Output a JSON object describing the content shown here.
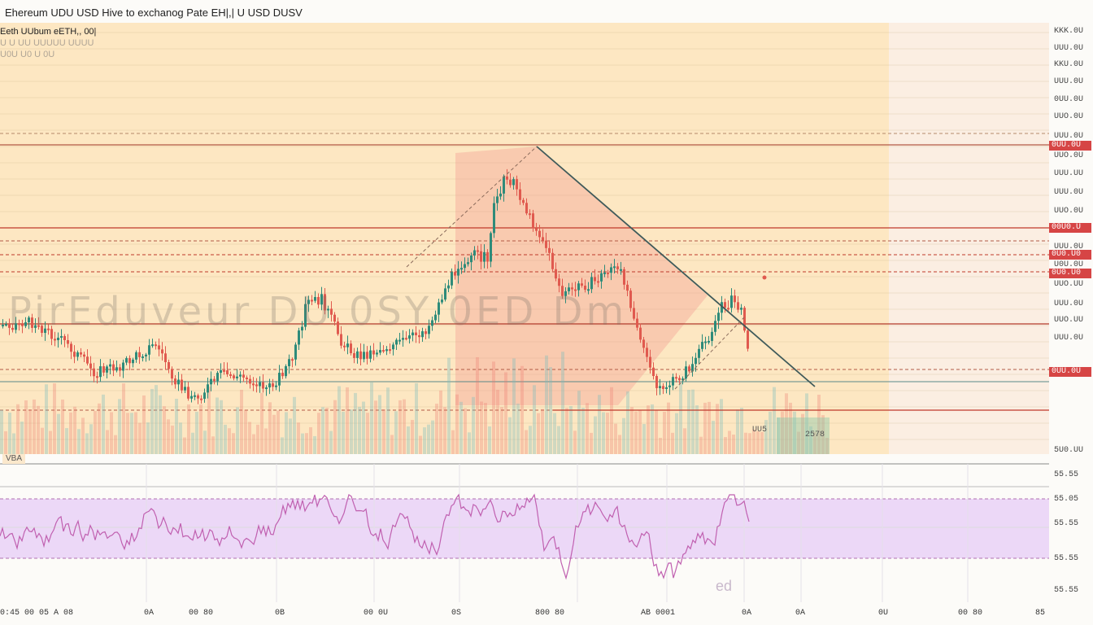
{
  "header": {
    "title": "Ehereum UDU USD Hive to exchanog Pate  EH|,| U USD DUSV",
    "symbol_line": "Eeth UUbum eETH,, 00|",
    "faded_line": "U U UU UUUUU UUUU",
    "faded_line2": "U0U U0 U 0U"
  },
  "watermark": "PirEduveur DU 0SY 0ED Dm",
  "price_axis": {
    "labels": [
      "KKK.0U",
      "UUU.0U",
      "KKU.0U",
      "UUU.0U",
      "0UU.0U",
      "UUO.0U",
      "UUU.0U",
      "UUO.0U",
      "UUU.UU",
      "UUU.0U",
      "UUO.0U",
      "UUU.0U",
      "UUU.0U",
      "U0U.0U",
      "UUO.UU",
      "UUU.0U",
      "UUO.UU",
      "UUU.0U"
    ],
    "badges": [
      {
        "text": "0UU.0U",
        "color": "#d64545"
      },
      {
        "text": "00U0.U",
        "color": "#d64545"
      },
      {
        "text": "0U0.U0",
        "color": "#d64545"
      },
      {
        "text": "0U0.U0",
        "color": "#d64545"
      },
      {
        "text": "0UU.0U",
        "color": "#d64545"
      }
    ],
    "bottom_label": "5U0.UU"
  },
  "indicator": {
    "tag": "VBA",
    "axis_labels": [
      "55.55",
      "55.05",
      "55.55",
      "55.55",
      "55.55"
    ],
    "watermark": "ed"
  },
  "overlay_labels": {
    "box_label": "2578",
    "small_label": "UU5"
  },
  "time_axis": {
    "labels": [
      "0:45 00 05 A 08",
      "0A",
      "00 80",
      "0B",
      "00 0U",
      "0S",
      "800 80",
      "AB 0001",
      "0A",
      "0A",
      "0U",
      "00 80",
      "85"
    ]
  },
  "colors": {
    "bull": "#2e8b7a",
    "bear": "#e05a4f",
    "panel_bg": "#fde7c2",
    "indicator_line": "#c060b0",
    "indicator_band": "#ecd8f7",
    "badge_red": "#d64545",
    "trend_line": "#3f5a5a"
  }
}
